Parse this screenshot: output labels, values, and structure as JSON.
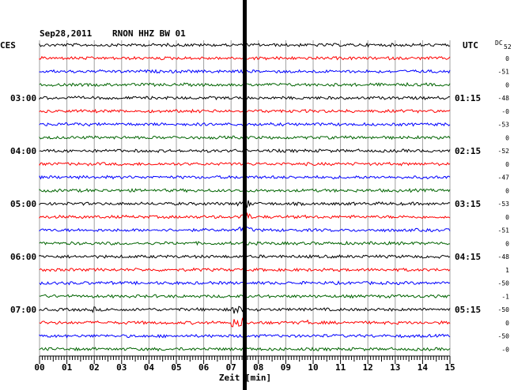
{
  "header": {
    "date": "Sep28,2011",
    "station": "RNON HHZ BW 01",
    "left_zone": "CES",
    "right_zone": "UTC",
    "dc_label": "DC",
    "dc_sub": "52"
  },
  "chart_data": {
    "type": "line",
    "title": "Sep28,2011   RNON HHZ BW 01",
    "xlabel": "Zeit [min]",
    "xlim": [
      0,
      15
    ],
    "x_ticks": [
      "00",
      "01",
      "02",
      "03",
      "04",
      "05",
      "06",
      "07",
      "08",
      "09",
      "10",
      "11",
      "12",
      "13",
      "14",
      "15"
    ],
    "trace_colors": [
      "#000000",
      "#ff0000",
      "#0000ff",
      "#006400"
    ],
    "left_labels": [
      {
        "row": 4,
        "text": "03:00"
      },
      {
        "row": 8,
        "text": "04:00"
      },
      {
        "row": 12,
        "text": "05:00"
      },
      {
        "row": 16,
        "text": "06:00"
      },
      {
        "row": 20,
        "text": "07:00"
      }
    ],
    "right_labels": [
      {
        "row": 4,
        "text": "01:15"
      },
      {
        "row": 8,
        "text": "02:15"
      },
      {
        "row": 12,
        "text": "03:15"
      },
      {
        "row": 16,
        "text": "04:15"
      },
      {
        "row": 20,
        "text": "05:15"
      }
    ],
    "dc_values": [
      "0",
      "-51",
      "0",
      "-48",
      "-0",
      "-53",
      "0",
      "-52",
      "0",
      "-47",
      "0",
      "-53",
      "0",
      "-51",
      "0",
      "-48",
      "1",
      "-50",
      "-1",
      "-50",
      "0",
      "-50",
      "-0"
    ],
    "rows": 24,
    "event_minute": 7.5,
    "grid": true
  }
}
